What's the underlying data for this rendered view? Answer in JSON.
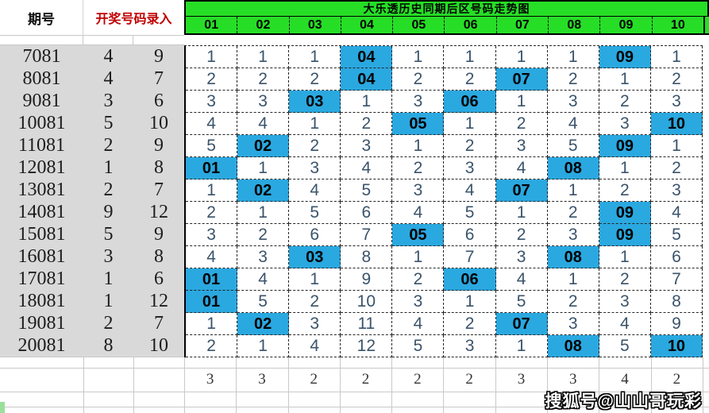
{
  "header": {
    "period_label": "期号",
    "entry_label": "开奖号码录入",
    "title": "大乐透历史同期后区号码走势图",
    "columns": [
      "01",
      "02",
      "03",
      "04",
      "05",
      "06",
      "07",
      "08",
      "09",
      "10"
    ]
  },
  "colors": {
    "green": "#26DE26",
    "green_light": "#9ADF9A",
    "blue": "#2AA8E0",
    "gray_panel": "#D9D9D9",
    "red_label": "#C00000",
    "grid_number": "#3A536B"
  },
  "rows": [
    {
      "period": "7081",
      "nums": [
        "4",
        "9"
      ],
      "cells": [
        "1",
        "1",
        "1",
        "04",
        "1",
        "1",
        "1",
        "1",
        "09",
        "1"
      ],
      "hl": [
        3,
        8
      ]
    },
    {
      "period": "8081",
      "nums": [
        "4",
        "7"
      ],
      "cells": [
        "2",
        "2",
        "2",
        "04",
        "2",
        "2",
        "07",
        "2",
        "1",
        "2"
      ],
      "hl": [
        3,
        6
      ]
    },
    {
      "period": "9081",
      "nums": [
        "3",
        "6"
      ],
      "cells": [
        "3",
        "3",
        "03",
        "1",
        "3",
        "06",
        "1",
        "3",
        "2",
        "3"
      ],
      "hl": [
        2,
        5
      ]
    },
    {
      "period": "10081",
      "nums": [
        "5",
        "10"
      ],
      "cells": [
        "4",
        "4",
        "1",
        "2",
        "05",
        "1",
        "2",
        "4",
        "3",
        "10"
      ],
      "hl": [
        4,
        9
      ]
    },
    {
      "period": "11081",
      "nums": [
        "2",
        "9"
      ],
      "cells": [
        "5",
        "02",
        "2",
        "3",
        "1",
        "2",
        "3",
        "5",
        "09",
        "1"
      ],
      "hl": [
        1,
        8
      ]
    },
    {
      "period": "12081",
      "nums": [
        "1",
        "8"
      ],
      "cells": [
        "01",
        "1",
        "3",
        "4",
        "2",
        "3",
        "4",
        "08",
        "1",
        "2"
      ],
      "hl": [
        0,
        7
      ]
    },
    {
      "period": "13081",
      "nums": [
        "2",
        "7"
      ],
      "cells": [
        "1",
        "02",
        "4",
        "5",
        "3",
        "4",
        "07",
        "1",
        "2",
        "3"
      ],
      "hl": [
        1,
        6
      ]
    },
    {
      "period": "14081",
      "nums": [
        "9",
        "12"
      ],
      "cells": [
        "2",
        "1",
        "5",
        "6",
        "4",
        "5",
        "1",
        "2",
        "09",
        "4"
      ],
      "hl": [
        8
      ]
    },
    {
      "period": "15081",
      "nums": [
        "5",
        "9"
      ],
      "cells": [
        "3",
        "2",
        "6",
        "7",
        "05",
        "6",
        "2",
        "3",
        "09",
        "5"
      ],
      "hl": [
        4,
        8
      ]
    },
    {
      "period": "16081",
      "nums": [
        "3",
        "8"
      ],
      "cells": [
        "4",
        "3",
        "03",
        "8",
        "1",
        "7",
        "3",
        "08",
        "1",
        "6"
      ],
      "hl": [
        2,
        7
      ]
    },
    {
      "period": "17081",
      "nums": [
        "1",
        "6"
      ],
      "cells": [
        "01",
        "4",
        "1",
        "9",
        "2",
        "06",
        "4",
        "1",
        "2",
        "7"
      ],
      "hl": [
        0,
        5
      ]
    },
    {
      "period": "18081",
      "nums": [
        "1",
        "12"
      ],
      "cells": [
        "01",
        "5",
        "2",
        "10",
        "3",
        "1",
        "5",
        "2",
        "3",
        "8"
      ],
      "hl": [
        0
      ]
    },
    {
      "period": "19081",
      "nums": [
        "2",
        "7"
      ],
      "cells": [
        "1",
        "02",
        "3",
        "11",
        "4",
        "2",
        "07",
        "3",
        "4",
        "9"
      ],
      "hl": [
        1,
        6
      ]
    },
    {
      "period": "20081",
      "nums": [
        "8",
        "10"
      ],
      "cells": [
        "2",
        "1",
        "4",
        "12",
        "5",
        "3",
        "1",
        "08",
        "5",
        "10"
      ],
      "hl": [
        7,
        9
      ]
    }
  ],
  "summary": [
    "3",
    "3",
    "2",
    "2",
    "2",
    "2",
    "3",
    "3",
    "4",
    "2"
  ],
  "watermark": "搜狐号@山山哥玩彩"
}
